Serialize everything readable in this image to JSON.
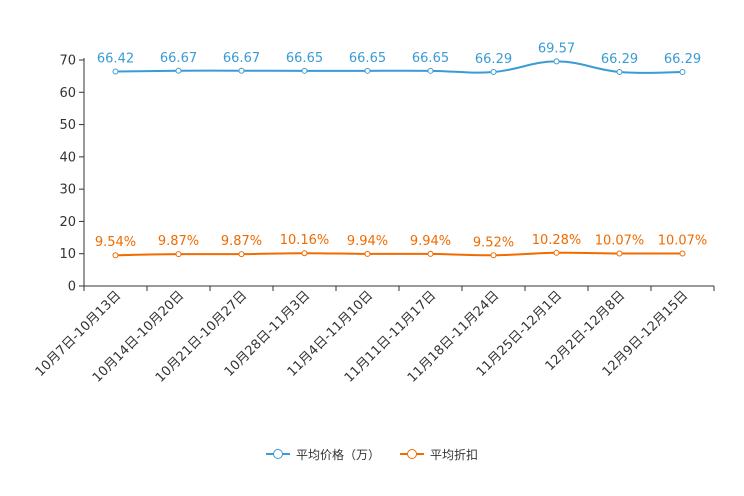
{
  "chart_data": {
    "type": "line",
    "categories": [
      "10月7日-10月13日",
      "10月14日-10月20日",
      "10月21日-10月27日",
      "10月28日-11月3日",
      "11月4日-11月10日",
      "11月11日-11月17日",
      "11月18日-11月24日",
      "11月25日-12月1日",
      "12月2日-12月8日",
      "12月9日-12月15日"
    ],
    "ylim": [
      0,
      70
    ],
    "yticks": [
      0,
      10,
      20,
      30,
      40,
      50,
      60,
      70
    ],
    "series": [
      {
        "name": "平均价格（万）",
        "color": "#3a9bd5",
        "values": [
          66.42,
          66.67,
          66.67,
          66.65,
          66.65,
          66.65,
          66.29,
          69.57,
          66.29,
          66.29
        ],
        "labels": [
          "66.42",
          "66.67",
          "66.67",
          "66.65",
          "66.65",
          "66.65",
          "66.29",
          "69.57",
          "66.29",
          "66.29"
        ]
      },
      {
        "name": "平均折扣",
        "color": "#f06b00",
        "values": [
          9.54,
          9.87,
          9.87,
          10.16,
          9.94,
          9.94,
          9.52,
          10.28,
          10.07,
          10.07
        ],
        "labels": [
          "9.54%",
          "9.87%",
          "9.87%",
          "10.16%",
          "9.94%",
          "9.94%",
          "9.52%",
          "10.28%",
          "10.07%",
          "10.07%"
        ]
      }
    ],
    "legend_position": "bottom-center"
  }
}
